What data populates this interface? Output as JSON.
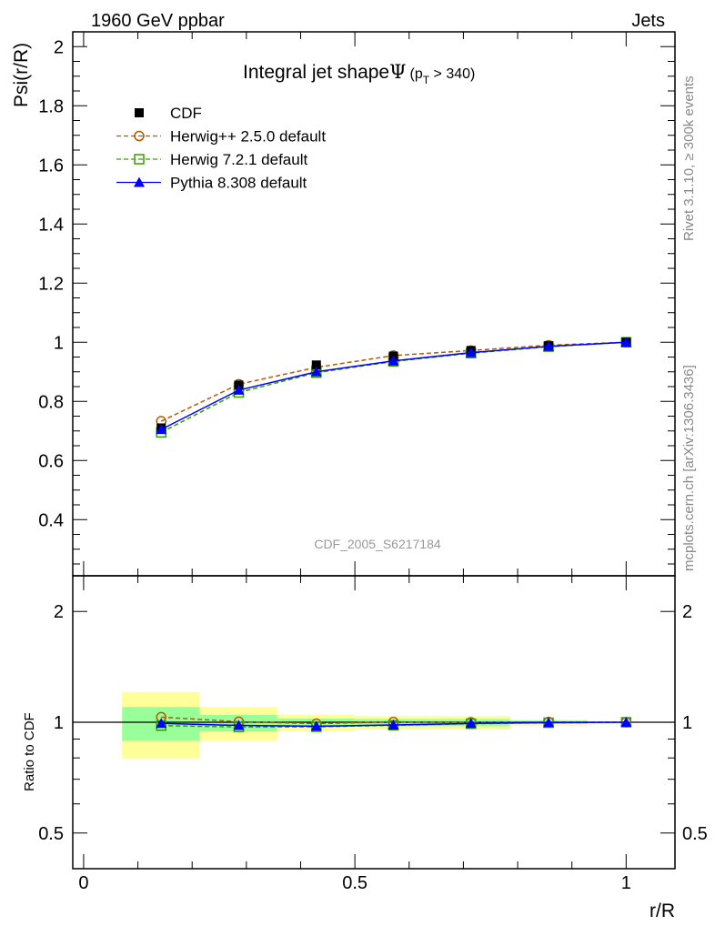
{
  "chart_data": {
    "type": "line",
    "title": "Integral jet shape",
    "title_symbol": "Ψ",
    "title_cut": "(p",
    "title_cut_sub": "T",
    "title_cut_end": " > 340)",
    "top_left_label": "1960 GeV ppbar",
    "top_right_label": "Jets",
    "side_label_rivet": "Rivet 3.1.10, ≥ 300k events",
    "side_label_mcplots": "mcplots.cern.ch [arXiv:1306.3436]",
    "analysis_label": "CDF_2005_S6217184",
    "xlabel": "r/R",
    "ylabel": "Psi(r/R)",
    "ratio_ylabel": "Ratio to CDF",
    "xlim": [
      -0.02,
      1.09
    ],
    "ylim": [
      0.21,
      2.05
    ],
    "ratio_ylim": [
      0.4,
      2.5
    ],
    "ratio_scale": "log",
    "x_ticks": [
      {
        "v": 0,
        "label": "0"
      },
      {
        "v": 0.5,
        "label": "0.5"
      },
      {
        "v": 1,
        "label": "1"
      }
    ],
    "y_ticks": [
      {
        "v": 0.4,
        "label": "0.4"
      },
      {
        "v": 0.6,
        "label": "0.6"
      },
      {
        "v": 0.8,
        "label": "0.8"
      },
      {
        "v": 1,
        "label": "1"
      },
      {
        "v": 1.2,
        "label": "1.2"
      },
      {
        "v": 1.4,
        "label": "1.4"
      },
      {
        "v": 1.6,
        "label": "1.6"
      },
      {
        "v": 1.8,
        "label": "1.8"
      },
      {
        "v": 2,
        "label": "2"
      }
    ],
    "ratio_ticks": [
      {
        "v": 0.5,
        "label": "0.5"
      },
      {
        "v": 1,
        "label": "1"
      },
      {
        "v": 2,
        "label": "2"
      }
    ],
    "legend_position": "top-left",
    "x": [
      0.143,
      0.286,
      0.429,
      0.571,
      0.714,
      0.857,
      1.0
    ],
    "bin_edges": [
      0.071,
      0.214,
      0.357,
      0.5,
      0.643,
      0.786,
      0.929,
      1.071
    ],
    "data_band_total": [
      [
        0.795,
        1.208
      ],
      [
        0.89,
        1.1
      ],
      [
        0.944,
        1.047
      ],
      [
        0.955,
        1.04
      ],
      [
        0.955,
        1.04
      ],
      [
        0.977,
        1.017
      ],
      [
        0.998,
        1.002
      ]
    ],
    "data_band_stat": [
      [
        0.89,
        1.1
      ],
      [
        0.944,
        1.047
      ],
      [
        0.972,
        1.023
      ],
      [
        0.975,
        1.02
      ],
      [
        0.975,
        1.02
      ],
      [
        0.99,
        1.01
      ],
      [
        0.999,
        1.001
      ]
    ],
    "series": [
      {
        "name": "CDF",
        "color": "#000000",
        "marker": "square-filled",
        "line": "none",
        "values": [
          0.71,
          0.855,
          0.923,
          0.953,
          0.972,
          0.988,
          1.0
        ],
        "err": [
          0.012,
          0.01,
          0.008,
          0.006,
          0.005,
          0.003,
          0.0
        ]
      },
      {
        "name": "Herwig++ 2.5.0 default",
        "color": "#b35900",
        "marker": "circle-open",
        "line": "dashed",
        "values": [
          0.733,
          0.858,
          0.915,
          0.955,
          0.972,
          0.99,
          1.0
        ]
      },
      {
        "name": "Herwig 7.2.1 default",
        "color": "#33a000",
        "marker": "square-open",
        "line": "dashed",
        "values": [
          0.695,
          0.83,
          0.897,
          0.935,
          0.963,
          0.985,
          1.0
        ]
      },
      {
        "name": "Pythia 8.308 default",
        "color": "#0000ff",
        "marker": "triangle-filled",
        "line": "solid",
        "values": [
          0.705,
          0.838,
          0.9,
          0.937,
          0.965,
          0.986,
          1.0
        ]
      }
    ],
    "colors": {
      "band_total": "#ffff99",
      "band_stat": "#99ff99"
    }
  }
}
